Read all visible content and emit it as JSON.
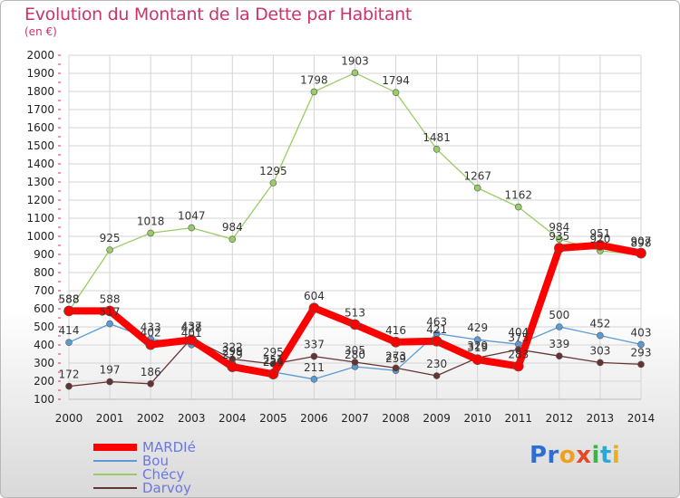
{
  "header": {
    "title": "Evolution du Montant de la Dette par Habitant",
    "subtitle": "(en €)"
  },
  "logo": {
    "text": "Proxiti",
    "letters": [
      "Pr",
      "o",
      "x",
      "i",
      "t",
      "i"
    ]
  },
  "colors": {
    "title": "#cc3366",
    "mardie": "#ff0000",
    "bou": "#5b9bd5",
    "checy": "#99cc66",
    "darvoy": "#663333",
    "grid": "#d4d4d4"
  },
  "chart_data": {
    "type": "line",
    "title": "Evolution du Montant de la Dette par Habitant",
    "subtitle": "(en €)",
    "xlabel": "",
    "ylabel": "",
    "x": [
      "2000",
      "2001",
      "2002",
      "2003",
      "2004",
      "2005",
      "2006",
      "2007",
      "2008",
      "2009",
      "2010",
      "2011",
      "2012",
      "2013",
      "2014"
    ],
    "ylim": [
      100,
      2000
    ],
    "yticks": [
      100,
      200,
      300,
      400,
      500,
      600,
      700,
      800,
      900,
      1000,
      1100,
      1200,
      1300,
      1400,
      1500,
      1600,
      1700,
      1800,
      1900,
      2000
    ],
    "grid": true,
    "legend_position": "bottom-left",
    "series": [
      {
        "name": "MARDIé",
        "color": "#ff0000",
        "values": [
          588,
          588,
          402,
          428,
          279,
          239,
          604,
          513,
          416,
          421,
          319,
          283,
          935,
          951,
          907
        ]
      },
      {
        "name": "Bou",
        "color": "#5b9bd5",
        "values": [
          414,
          517,
          433,
          401,
          299,
          251,
          211,
          280,
          259,
          463,
          429,
          404,
          500,
          452,
          403
        ]
      },
      {
        "name": "Chécy",
        "color": "#99cc66",
        "values": [
          588,
          925,
          1018,
          1047,
          984,
          1295,
          1798,
          1903,
          1794,
          1481,
          1267,
          1162,
          984,
          920,
          898
        ]
      },
      {
        "name": "Darvoy",
        "color": "#663333",
        "values": [
          172,
          197,
          186,
          437,
          322,
          295,
          337,
          305,
          273,
          230,
          329,
          375,
          339,
          303,
          293
        ]
      }
    ]
  }
}
